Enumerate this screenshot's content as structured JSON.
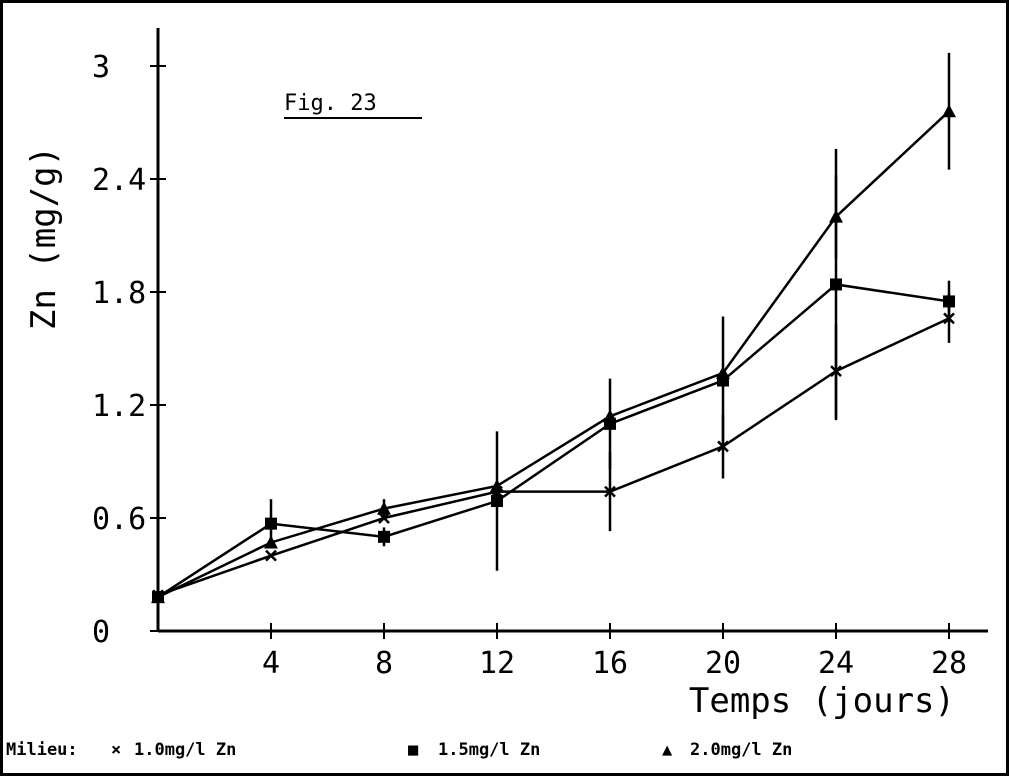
{
  "chart_data": {
    "type": "line",
    "figure_label": "Fig. 23",
    "xlabel": "Temps (jours)",
    "ylabel": "Zn (mg/g)",
    "xlim": [
      0,
      29
    ],
    "ylim": [
      0,
      3.2
    ],
    "x_ticks": [
      "4",
      "8",
      "12",
      "16",
      "20",
      "24",
      "28"
    ],
    "y_ticks": [
      "0",
      "0.6",
      "1.2",
      "1.8",
      "2.4",
      "3"
    ],
    "x": [
      0,
      4,
      8,
      12,
      16,
      20,
      24,
      28
    ],
    "series": [
      {
        "name": "1.0mg/l Zn",
        "marker": "x",
        "values": [
          0.19,
          0.4,
          0.6,
          0.74,
          0.74,
          0.98,
          1.38,
          1.66
        ],
        "error": [
          0,
          0,
          0,
          0,
          0.21,
          0.17,
          0.25,
          0.13
        ]
      },
      {
        "name": "1.5mg/l Zn",
        "marker": "square",
        "values": [
          0.18,
          0.57,
          0.5,
          0.69,
          1.1,
          1.33,
          1.84,
          1.75
        ],
        "error": [
          0,
          0.13,
          0.05,
          0.37,
          0.24,
          0.34,
          0.72,
          0.11
        ]
      },
      {
        "name": "2.0mg/l Zn",
        "marker": "triangle",
        "values": [
          0.18,
          0.47,
          0.65,
          0.77,
          1.14,
          1.37,
          2.2,
          2.76
        ],
        "error": [
          0,
          0,
          0.05,
          0,
          0,
          0,
          0.22,
          0.31
        ]
      }
    ],
    "legend": {
      "title": "Milieu:",
      "position": "bottom",
      "items": [
        {
          "symbol": "×",
          "label": "1.0mg/l Zn"
        },
        {
          "symbol": "■",
          "label": "1.5mg/l Zn"
        },
        {
          "symbol": "▲",
          "label": "2.0mg/l Zn"
        }
      ]
    },
    "grid": false
  }
}
